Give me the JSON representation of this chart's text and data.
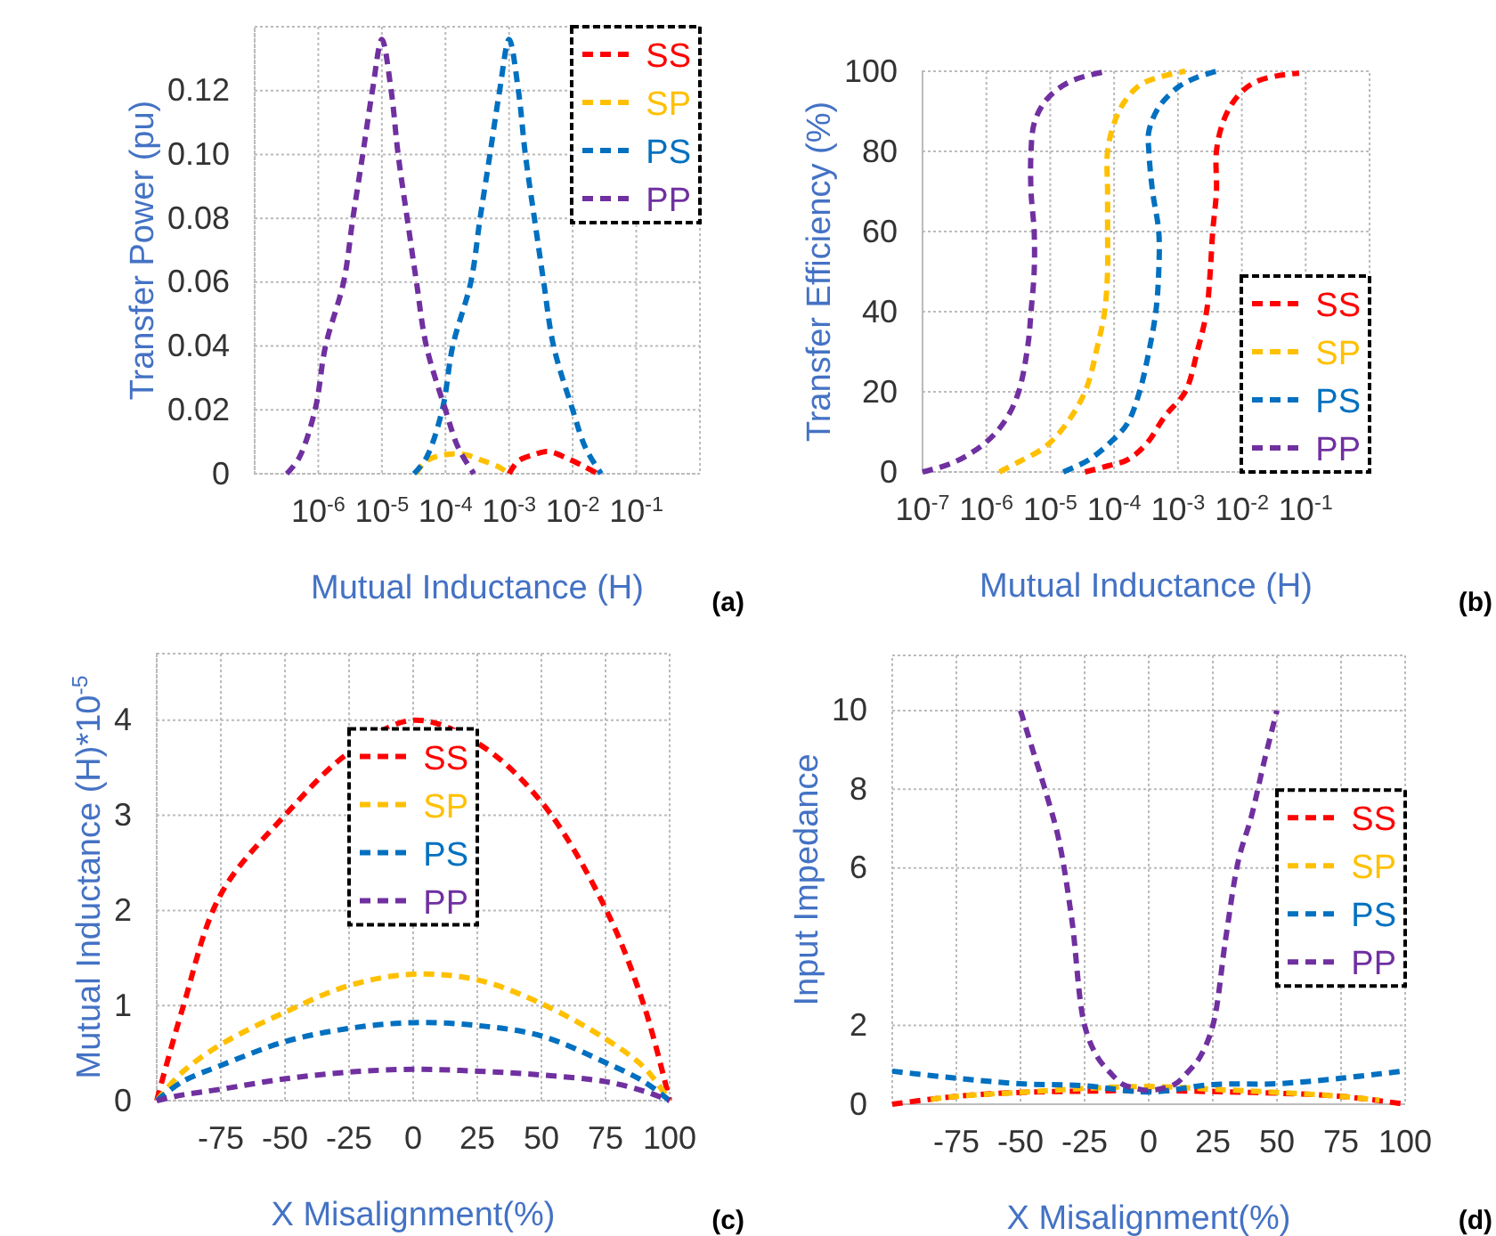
{
  "chart_data": [
    {
      "type": "line",
      "xlabel": "Mutual Inductance (H)",
      "ylabel": "Transfer Power (pu)",
      "log": "x",
      "grid": true,
      "legend": "top right",
      "line_style": "dashed",
      "xlim": [
        1e-07,
        1
      ],
      "xticks": [
        {
          "value": 1e-06,
          "label": "10$^{-6}$"
        },
        {
          "value": 1e-05,
          "label": "10$^{-5}$"
        },
        {
          "value": 0.0001,
          "label": "10$^{-4}$"
        },
        {
          "value": 0.001,
          "label": "10$^{-3}$"
        },
        {
          "value": 0.01,
          "label": "10$^{-2}$"
        },
        {
          "value": 0.1,
          "label": "10$^{-1}$"
        }
      ],
      "ylim": [
        0,
        0.14
      ],
      "yticks": [
        0,
        0.02,
        0.04,
        0.06,
        0.08,
        {
          "value": 0.1,
          "label": "0.10"
        },
        0.12
      ],
      "annotations": [
        "(a)"
      ],
      "series": [
        {
          "name": "SS",
          "color": "#ff0000",
          "x": [
            0.001,
            0.0014,
            0.0025,
            0.004,
            0.0079,
            0.016,
            0.025
          ],
          "values": [
            0,
            0.004,
            0.006,
            0.007,
            0.005,
            0.002,
            0
          ]
        },
        {
          "name": "SP",
          "color": "#ffc000",
          "x": [
            3.4e-05,
            5e-05,
            0.0001,
            0.0002,
            0.0004,
            0.00071,
            0.001
          ],
          "values": [
            0,
            0.004,
            0.006,
            0.006,
            0.004,
            0.002,
            0
          ]
        },
        {
          "name": "PS",
          "color": "#0070c0",
          "x": [
            3.2e-05,
            5e-05,
            8.9e-05,
            0.00013,
            0.00025,
            0.00035,
            0.0005,
            0.00071,
            0.001,
            0.0014,
            0.0018,
            0.0025,
            0.0035,
            0.005,
            0.01,
            0.016,
            0.028
          ],
          "values": [
            0,
            0.005,
            0.02,
            0.04,
            0.06,
            0.08,
            0.1,
            0.12,
            0.136,
            0.12,
            0.1,
            0.08,
            0.06,
            0.04,
            0.02,
            0.008,
            0
          ]
        },
        {
          "name": "PP",
          "color": "#7030a0",
          "x": [
            3.2e-07,
            5e-07,
            8.9e-07,
            1.3e-06,
            2.5e-06,
            3.5e-06,
            5e-06,
            7.1e-06,
            1e-05,
            1.4e-05,
            1.8e-05,
            2.5e-05,
            3.5e-05,
            5e-05,
            0.0001,
            0.00016,
            0.00028
          ],
          "values": [
            0,
            0.005,
            0.02,
            0.04,
            0.06,
            0.08,
            0.1,
            0.12,
            0.136,
            0.12,
            0.1,
            0.08,
            0.06,
            0.04,
            0.02,
            0.008,
            0
          ]
        }
      ]
    },
    {
      "type": "line",
      "xlabel": "Mutual Inductance (H)",
      "ylabel": "Transfer Efficiency (%)",
      "log": "x",
      "grid": true,
      "legend": "bottom right",
      "line_style": "dashed",
      "xlim": [
        1e-07,
        1
      ],
      "xticks": [
        {
          "value": 1e-07,
          "label": "10$^{-7}$"
        },
        {
          "value": 1e-06,
          "label": "10$^{-6}$"
        },
        {
          "value": 1e-05,
          "label": "10$^{-5}$"
        },
        {
          "value": 0.0001,
          "label": "10$^{-4}$"
        },
        {
          "value": 0.001,
          "label": "10$^{-3}$"
        },
        {
          "value": 0.01,
          "label": "10$^{-2}$"
        },
        {
          "value": 0.1,
          "label": "10$^{-1}$"
        }
      ],
      "ylim": [
        0,
        100
      ],
      "yticks": [
        0,
        20,
        40,
        60,
        80,
        100
      ],
      "annotations": [
        "(b)"
      ],
      "series": [
        {
          "name": "SS",
          "color": "#ff0000",
          "x": [
            3.5e-05,
            7.9e-05,
            0.00016,
            0.00032,
            0.00063,
            0.0013,
            0.002,
            0.0028,
            0.0032,
            0.0035,
            0.004,
            0.004,
            0.005,
            0.0071,
            0.011,
            0.018,
            0.04,
            0.079
          ],
          "values": [
            0,
            1.5,
            3,
            7,
            14,
            20,
            30,
            40,
            50,
            60,
            70,
            80,
            87,
            92,
            95.5,
            97.6,
            99,
            99.5
          ]
        },
        {
          "name": "SP",
          "color": "#ffc000",
          "x": [
            1.6e-06,
            3.2e-06,
            7.9e-06,
            1.6e-05,
            3.5e-05,
            5.6e-05,
            7.1e-05,
            7.9e-05,
            7.9e-05,
            7.9e-05,
            7.9e-05,
            0.0001,
            0.00014,
            0.00025,
            0.0005,
            0.0013
          ],
          "values": [
            0,
            2.5,
            6,
            11,
            20,
            32,
            40,
            50,
            60,
            70,
            80,
            87,
            92,
            96.5,
            98.5,
            100
          ]
        },
        {
          "name": "PS",
          "color": "#0070c0",
          "x": [
            1.6e-05,
            4e-05,
            8.9e-05,
            0.00016,
            0.00025,
            0.00035,
            0.00045,
            0.0005,
            0.0005,
            0.0004,
            0.00035,
            0.00035,
            0.0005,
            0.001,
            0.002,
            0.004
          ],
          "values": [
            0,
            3,
            7.5,
            12,
            20,
            30,
            40,
            50,
            60,
            70,
            80,
            85,
            91,
            96,
            98.5,
            100
          ]
        },
        {
          "name": "PP",
          "color": "#7030a0",
          "x": [
            1e-07,
            3.2e-07,
            1e-06,
            2e-06,
            3.2e-06,
            4.5e-06,
            5e-06,
            5.6e-06,
            5.6e-06,
            5e-06,
            5e-06,
            5.6e-06,
            7.9e-06,
            1.3e-05,
            2.5e-05,
            7.9e-05
          ],
          "values": [
            0,
            2.5,
            7.5,
            13,
            20,
            32,
            40,
            50,
            60,
            70,
            80,
            87,
            92,
            95.5,
            98,
            100
          ]
        }
      ]
    },
    {
      "type": "line",
      "xlabel": "X Misalignment(%)",
      "ylabel": "Mutual Inductance (H)*10$^{-5}$",
      "grid": true,
      "legend": "top",
      "line_style": "dashed",
      "xlim": [
        -100,
        100
      ],
      "xticks": [
        -75,
        -50,
        -25,
        0,
        25,
        50,
        75,
        100
      ],
      "ylim": [
        0,
        4.7
      ],
      "yticks": [
        0,
        1,
        2,
        3,
        4
      ],
      "annotations": [
        "(c)"
      ],
      "x": [
        -100,
        -90,
        -75,
        -50,
        -25,
        0,
        25,
        50,
        75,
        90,
        100
      ],
      "series": [
        {
          "name": "SS",
          "color": "#ff0000",
          "values": [
            0,
            0.96,
            2.17,
            3.0,
            3.66,
            4.0,
            3.76,
            3.14,
            2.02,
            1.0,
            0
          ]
        },
        {
          "name": "SP",
          "color": "#ffc000",
          "values": [
            0,
            0.3,
            0.59,
            0.93,
            1.21,
            1.33,
            1.27,
            1.02,
            0.65,
            0.35,
            0
          ]
        },
        {
          "name": "PS",
          "color": "#0070c0",
          "values": [
            0,
            0.2,
            0.37,
            0.62,
            0.76,
            0.82,
            0.79,
            0.68,
            0.4,
            0.2,
            0
          ]
        },
        {
          "name": "PP",
          "color": "#7030a0",
          "values": [
            0,
            0.06,
            0.12,
            0.23,
            0.3,
            0.33,
            0.31,
            0.27,
            0.2,
            0.1,
            0
          ]
        }
      ]
    },
    {
      "type": "line",
      "xlabel": "X Misalignment(%)",
      "ylabel": "Input Impedance",
      "grid": true,
      "legend": "right",
      "line_style": "dashed",
      "xlim": [
        -100,
        100
      ],
      "xticks": [
        -75,
        -50,
        -25,
        0,
        25,
        50,
        75,
        100
      ],
      "ylim": [
        0,
        11.4
      ],
      "yticks": [
        0,
        2,
        6,
        8,
        10
      ],
      "annotations": [
        "(d)"
      ],
      "series": [
        {
          "name": "SS",
          "color": "#ff0000",
          "x": [
            -100,
            -75,
            -50,
            -25,
            0,
            25,
            50,
            75,
            100
          ],
          "values": [
            0,
            0.2,
            0.3,
            0.33,
            0.35,
            0.32,
            0.28,
            0.2,
            0
          ]
        },
        {
          "name": "SP",
          "color": "#ffc000",
          "x": [
            -85,
            -75,
            -50,
            -25,
            0,
            25,
            50,
            75,
            90
          ],
          "values": [
            0.12,
            0.2,
            0.3,
            0.4,
            0.45,
            0.38,
            0.3,
            0.2,
            0.1
          ]
        },
        {
          "name": "PS",
          "color": "#0070c0",
          "x": [
            -100,
            -75,
            -50,
            -25,
            0,
            25,
            50,
            75,
            100
          ],
          "values": [
            0.84,
            0.66,
            0.52,
            0.47,
            0.31,
            0.5,
            0.52,
            0.66,
            0.85
          ]
        },
        {
          "name": "PP",
          "color": "#7030a0",
          "x": [
            -50,
            -45,
            -40,
            -35,
            -30,
            -25,
            -20,
            -15,
            -10,
            -5,
            0,
            10,
            15,
            20,
            25,
            30,
            35,
            40,
            45,
            50
          ],
          "values": [
            10,
            8.95,
            7.9,
            6.7,
            4.7,
            2,
            1.2,
            0.8,
            0.5,
            0.4,
            0.35,
            0.5,
            0.8,
            1.2,
            2,
            4.2,
            6.2,
            7.3,
            8.7,
            10
          ]
        }
      ]
    }
  ]
}
